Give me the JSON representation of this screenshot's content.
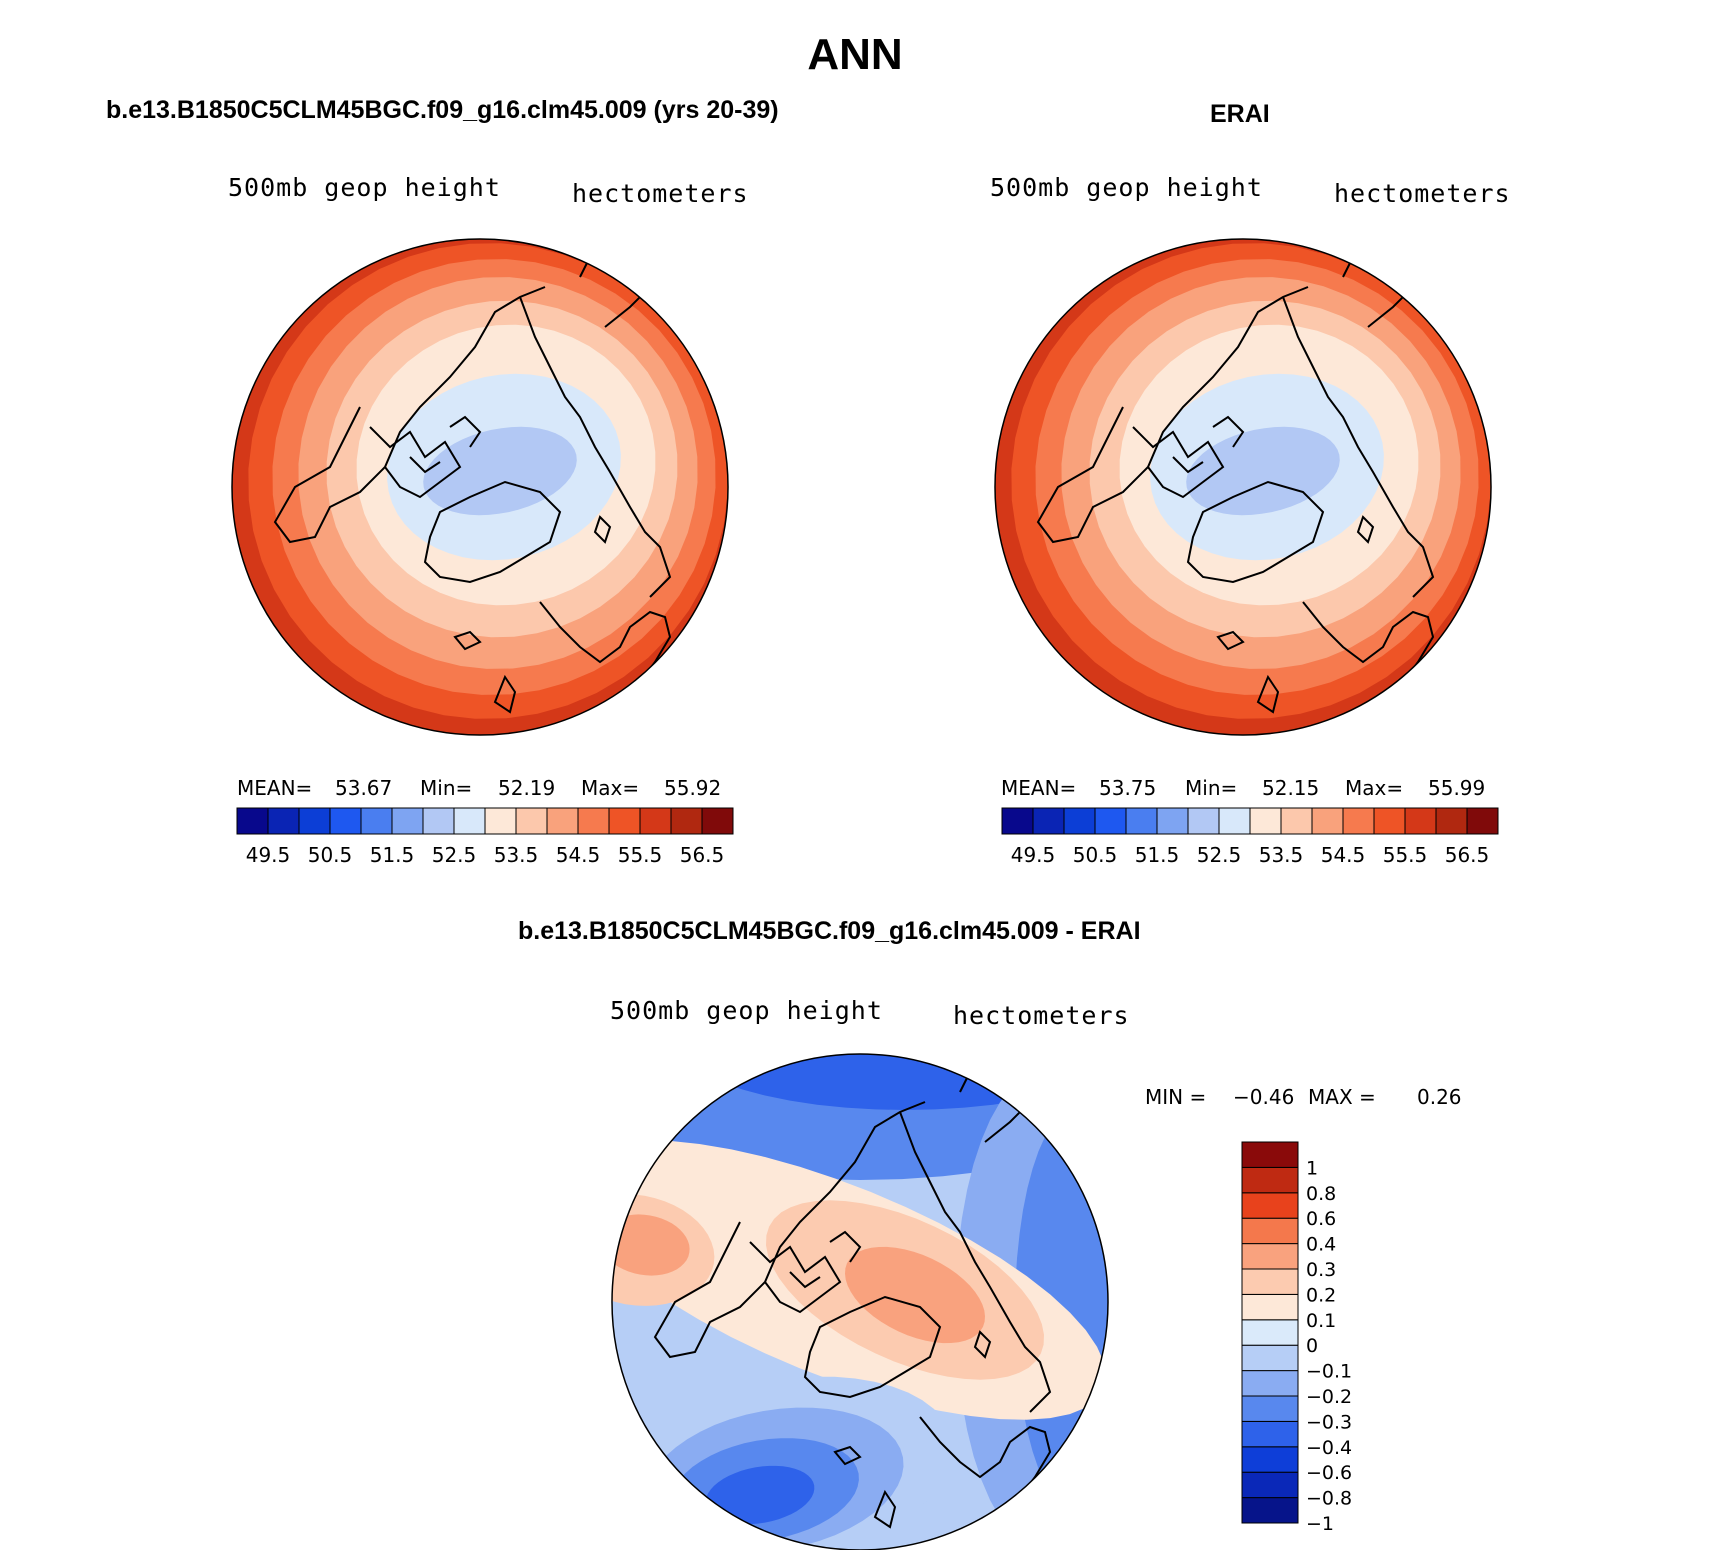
{
  "figure": {
    "title": "ANN"
  },
  "colors": {
    "sequential": [
      "#08088c",
      "#0a24b4",
      "#0c3ed6",
      "#1e58f0",
      "#4a7ef0",
      "#7ea4f2",
      "#b2c8f4",
      "#d8e8fa",
      "#fde8d8",
      "#fcc8ac",
      "#f9a27c",
      "#f67a4e",
      "#ee5426",
      "#d43818",
      "#b02810",
      "#800a0a"
    ],
    "diverging": [
      "#06148a",
      "#0a28b8",
      "#0e3ed8",
      "#2e62ea",
      "#5888ee",
      "#8aacf2",
      "#b6cef6",
      "#daeafa",
      "#fde8d8",
      "#fccbb0",
      "#f9a27e",
      "#f4784c",
      "#e8421c",
      "#bf2a12",
      "#8a0a0a"
    ],
    "coastline": "#000000",
    "outline": "#000000"
  },
  "panels": {
    "left": {
      "title": "b.e13.B1850C5CLM45BGC.f09_g16.clm45.009 (yrs 20-39)",
      "field": "500mb geop height",
      "units": "hectometers",
      "stats": {
        "mean_label": "MEAN=",
        "mean": "53.67",
        "min_label": "Min=",
        "min": "52.19",
        "max_label": "Max=",
        "max": "55.92"
      }
    },
    "right": {
      "title": "ERAI",
      "field": "500mb geop height",
      "units": "hectometers",
      "stats": {
        "mean_label": "MEAN=",
        "mean": "53.75",
        "min_label": "Min=",
        "min": "52.15",
        "max_label": "Max=",
        "max": "55.99"
      }
    },
    "diff": {
      "title": "b.e13.B1850C5CLM45BGC.f09_g16.clm45.009 - ERAI",
      "field": "500mb geop height",
      "units": "hectometers",
      "min_label": "MIN =",
      "min": "−0.46",
      "max_label": "MAX =",
      "max": "0.26"
    }
  },
  "chart_data": [
    {
      "type": "heatmap",
      "projection": "polar stereographic (North Pole)",
      "title": "b.e13.B1850C5CLM45BGC.f09_g16.clm45.009 (yrs 20-39)",
      "variable": "500mb geop height",
      "units": "hectometers",
      "mean": 53.67,
      "min": 52.19,
      "max": 55.92,
      "contour_levels": [
        49.5,
        50,
        50.5,
        51,
        51.5,
        52,
        52.5,
        53,
        53.5,
        54,
        54.5,
        55,
        55.5,
        56,
        56.5
      ],
      "colorbar_tick_labels": [
        "49.5",
        "50.5",
        "51.5",
        "52.5",
        "53.5",
        "54.5",
        "55.5",
        "56.5"
      ],
      "colorbar_tick_level_index": [
        0,
        2,
        4,
        6,
        8,
        10,
        12,
        14
      ]
    },
    {
      "type": "heatmap",
      "projection": "polar stereographic (North Pole)",
      "title": "ERAI",
      "variable": "500mb geop height",
      "units": "hectometers",
      "mean": 53.75,
      "min": 52.15,
      "max": 55.99,
      "contour_levels": [
        49.5,
        50,
        50.5,
        51,
        51.5,
        52,
        52.5,
        53,
        53.5,
        54,
        54.5,
        55,
        55.5,
        56,
        56.5
      ],
      "colorbar_tick_labels": [
        "49.5",
        "50.5",
        "51.5",
        "52.5",
        "53.5",
        "54.5",
        "55.5",
        "56.5"
      ],
      "colorbar_tick_level_index": [
        0,
        2,
        4,
        6,
        8,
        10,
        12,
        14
      ]
    },
    {
      "type": "heatmap",
      "projection": "polar stereographic (North Pole)",
      "title": "b.e13.B1850C5CLM45BGC.f09_g16.clm45.009 - ERAI",
      "variable": "500mb geop height",
      "units": "hectometers",
      "min": -0.46,
      "max": 0.26,
      "contour_levels": [
        -1,
        -0.8,
        -0.6,
        -0.4,
        -0.3,
        -0.2,
        -0.1,
        0,
        0.1,
        0.2,
        0.3,
        0.4,
        0.6,
        0.8,
        1
      ],
      "colorbar_tick_labels": [
        "1",
        "0.8",
        "0.6",
        "0.4",
        "0.3",
        "0.2",
        "0.1",
        "0",
        "−0.1",
        "−0.2",
        "−0.3",
        "−0.4",
        "−0.6",
        "−0.8",
        "−1"
      ]
    }
  ]
}
